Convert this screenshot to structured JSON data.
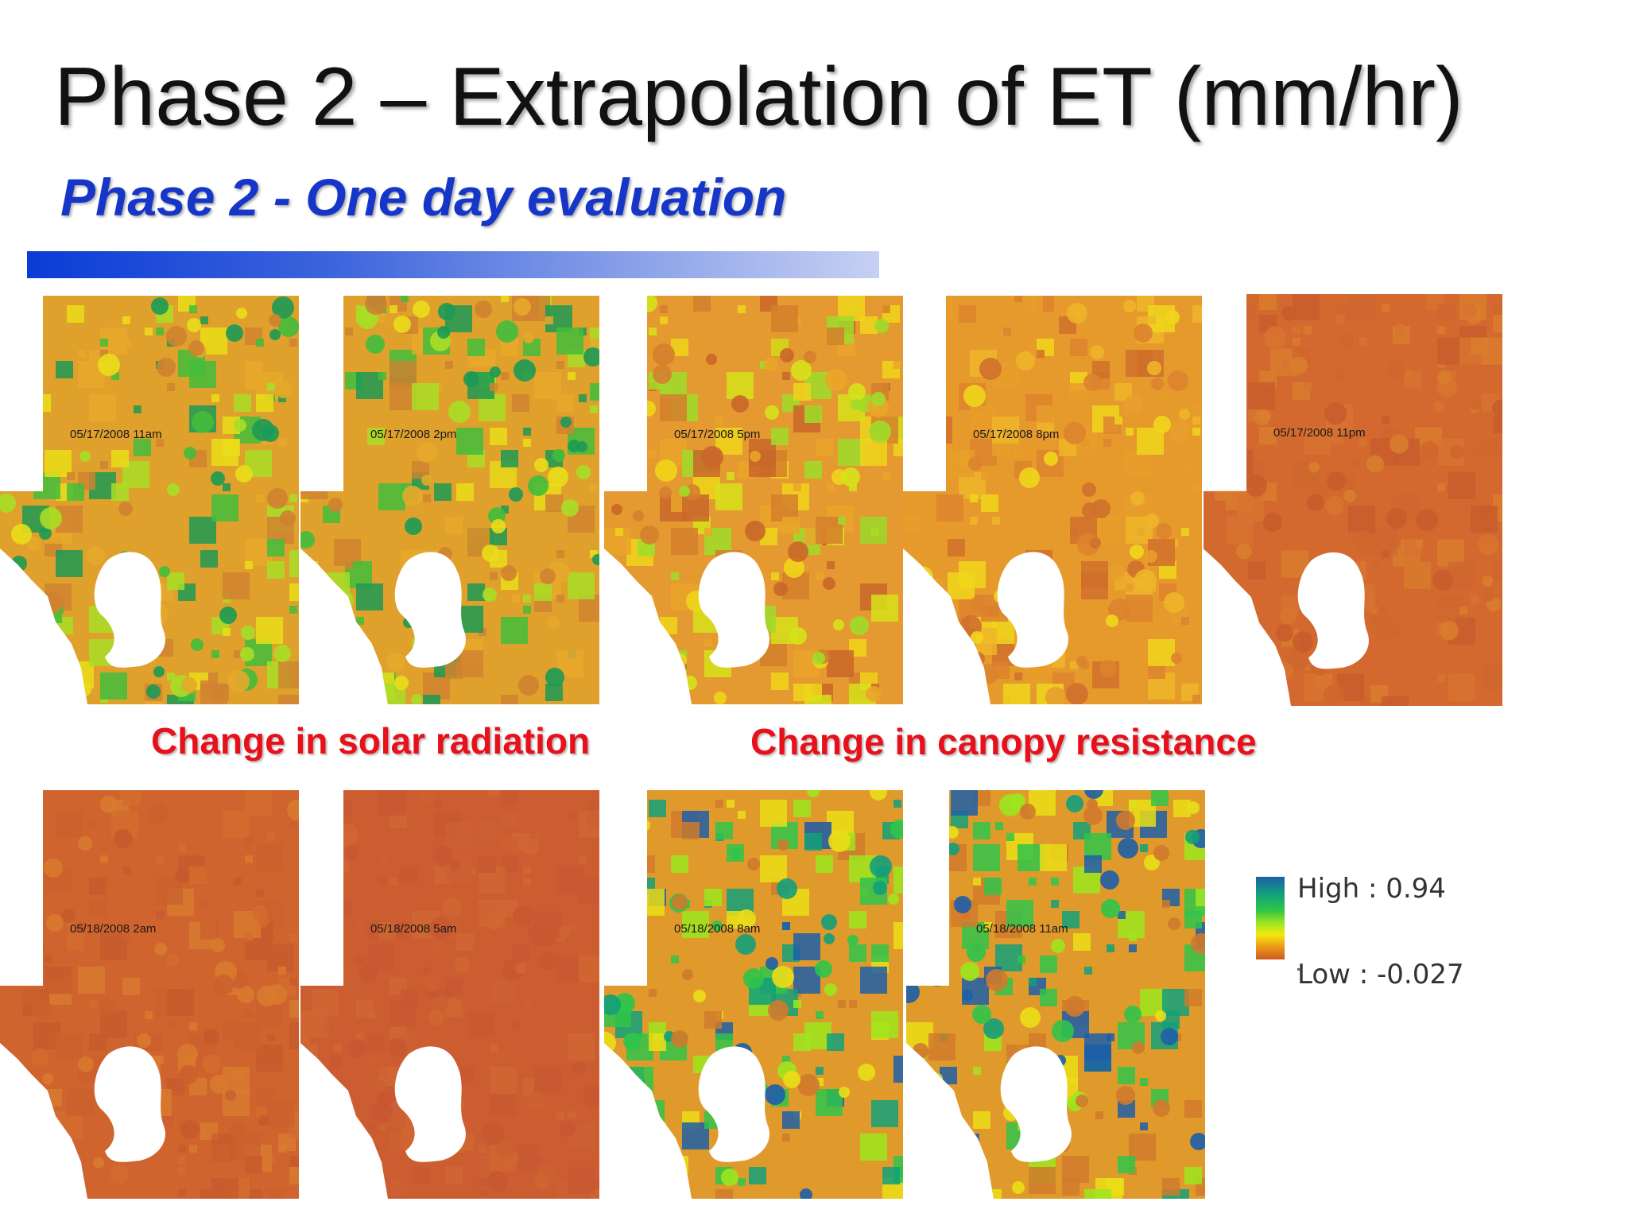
{
  "slide": {
    "title": "Phase 2 – Extrapolation of ET (mm/hr)",
    "subtitle": "Phase 2 - One day evaluation",
    "captions": {
      "solar": "Change in solar radiation",
      "canopy": "Change in canopy resistance"
    }
  },
  "maps": [
    {
      "timestamp": "05/17/2008 11am",
      "base": "#e0a02c",
      "palette": [
        "#1c9a55",
        "#43bd3c",
        "#a8de26",
        "#eadd1a",
        "#e6a82a",
        "#d08230"
      ]
    },
    {
      "timestamp": "05/17/2008 2pm",
      "base": "#e0a02c",
      "palette": [
        "#1c9a55",
        "#43bd3c",
        "#a8de26",
        "#eadd1a",
        "#e6a82a",
        "#d08230"
      ]
    },
    {
      "timestamp": "05/17/2008 5pm",
      "base": "#e49a30",
      "palette": [
        "#9fdc2a",
        "#d6e21a",
        "#f0d51b",
        "#eaa52a",
        "#d57f2c",
        "#c9672a"
      ]
    },
    {
      "timestamp": "05/17/2008 8pm",
      "base": "#e69a2c",
      "palette": [
        "#f0d61c",
        "#eeb52a",
        "#e89e2c",
        "#dc842e",
        "#d0702c"
      ]
    },
    {
      "timestamp": "05/17/2008 11pm",
      "base": "#d3692f",
      "palette": [
        "#d97d2e",
        "#cf672e",
        "#c85d2c",
        "#d77330"
      ]
    },
    {
      "timestamp": "05/18/2008 2am",
      "base": "#d0642f",
      "palette": [
        "#d87a2f",
        "#cc602e",
        "#c75a2c",
        "#d36c2f"
      ]
    },
    {
      "timestamp": "05/18/2008 5am",
      "base": "#cb5d31",
      "palette": [
        "#d06633",
        "#c85831",
        "#cd6032"
      ]
    },
    {
      "timestamp": "05/18/2008 8am",
      "base": "#e09a2c",
      "palette": [
        "#1d5fa8",
        "#13a07a",
        "#2fc44a",
        "#9ce61e",
        "#eade18",
        "#d07a2c"
      ]
    },
    {
      "timestamp": "05/18/2008 11am",
      "base": "#e09a2c",
      "palette": [
        "#1d5fa8",
        "#13a07a",
        "#2fc44a",
        "#9ce61e",
        "#eade18",
        "#d07a2c"
      ]
    }
  ],
  "legend": {
    "high": "High : 0.94",
    "low": "Low : -0.027",
    "ramp": [
      "#1d5fa8",
      "#13a37a",
      "#2fc44a",
      "#9ce61e",
      "#f4e80f",
      "#ec9c18",
      "#cf5a22"
    ]
  }
}
